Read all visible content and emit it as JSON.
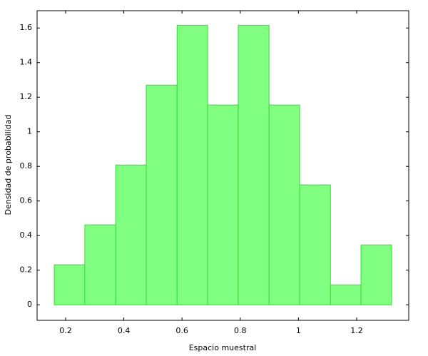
{
  "chart_data": {
    "type": "histogram",
    "x_label": "Espacio muestral",
    "y_label": "Densidad de probabilidad",
    "bins": [
      0.161,
      0.266,
      0.372,
      0.477,
      0.583,
      0.688,
      0.793,
      0.899,
      1.004,
      1.11,
      1.215,
      1.32
    ],
    "values": [
      0.231,
      0.462,
      0.808,
      1.27,
      1.616,
      1.155,
      1.616,
      1.155,
      0.693,
      0.115,
      0.346
    ],
    "color": "#80ff80",
    "edgecolor": "#33dd33",
    "xlim": [
      0.102,
      1.379
    ],
    "ylim": [
      -0.09,
      1.7
    ],
    "xticks": [
      0.2,
      0.4,
      0.6,
      0.8,
      1,
      1.2
    ],
    "yticks": [
      0,
      0.2,
      0.4,
      0.6,
      0.8,
      1,
      1.2,
      1.4,
      1.6
    ]
  }
}
